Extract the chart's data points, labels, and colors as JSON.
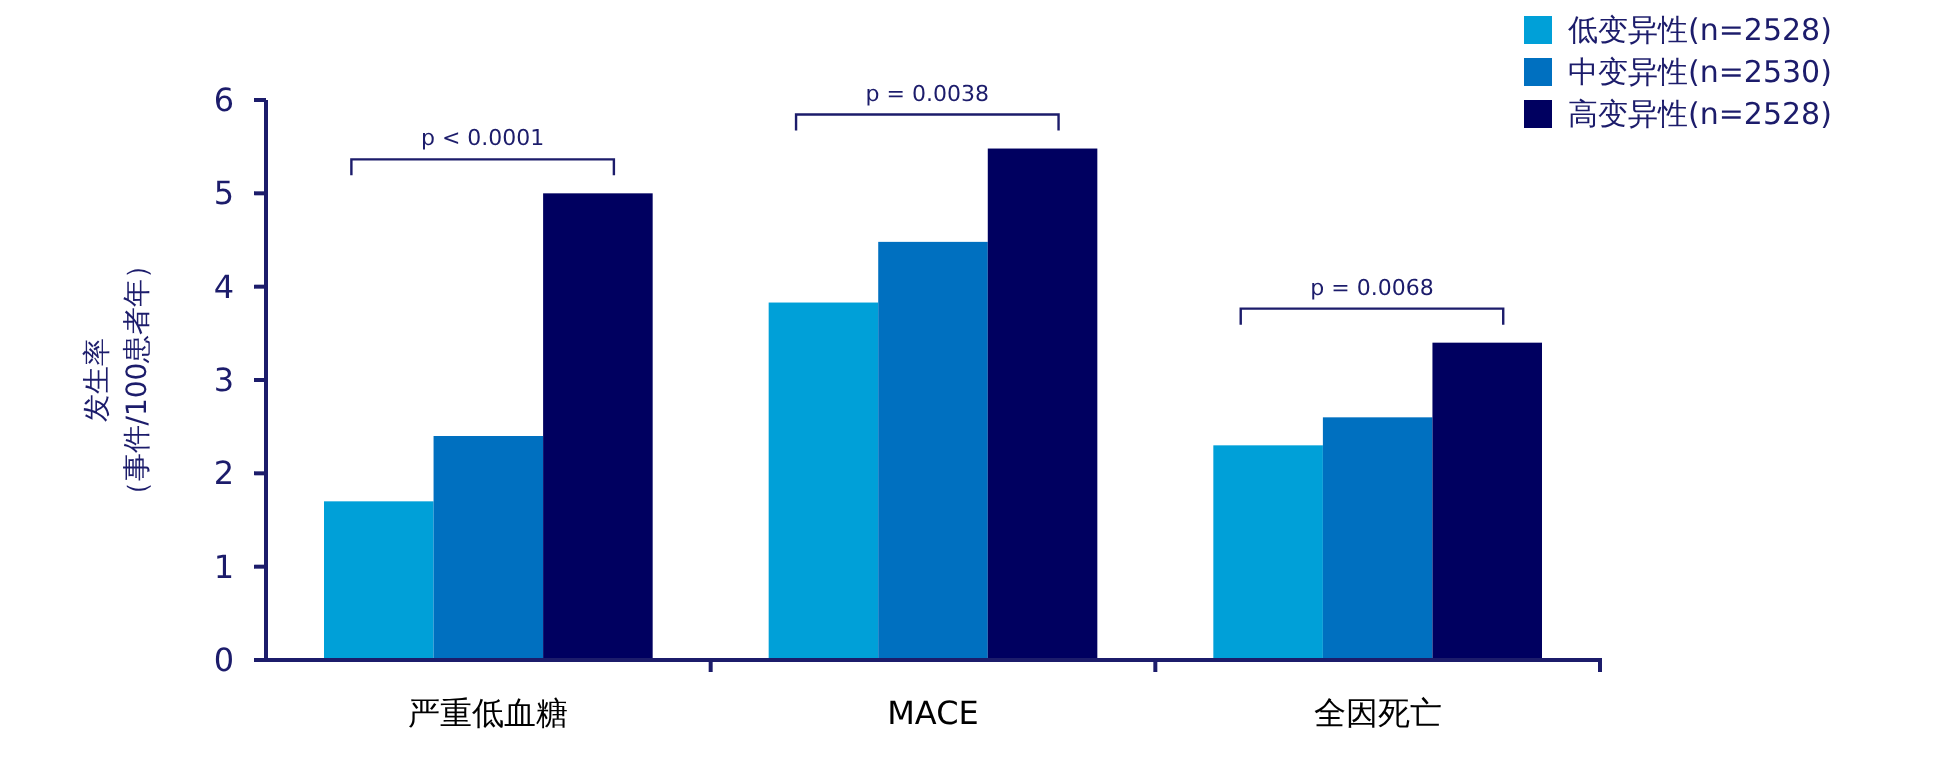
{
  "chart_data": {
    "type": "bar",
    "ylabel": "发生率（事件/100患者年）",
    "categories": [
      "严重低血糖",
      "MACE",
      "全因死亡"
    ],
    "series": [
      {
        "name": "低变异性(n=2528)",
        "color": "#00a0d8",
        "values": [
          1.7,
          3.83,
          2.3
        ]
      },
      {
        "name": "中变异性(n=2530)",
        "color": "#0070c0",
        "values": [
          2.4,
          4.48,
          2.6
        ]
      },
      {
        "name": "高变异性(n=2528)",
        "color": "#000060",
        "values": [
          5.0,
          5.48,
          3.4
        ]
      }
    ],
    "ylim": [
      0,
      6
    ],
    "yticks": [
      0,
      1,
      2,
      3,
      4,
      5,
      6
    ],
    "grid": false,
    "legend": "top right",
    "annotations": [
      "p < 0.0001",
      "p = 0.0038",
      "p = 0.0068"
    ]
  }
}
